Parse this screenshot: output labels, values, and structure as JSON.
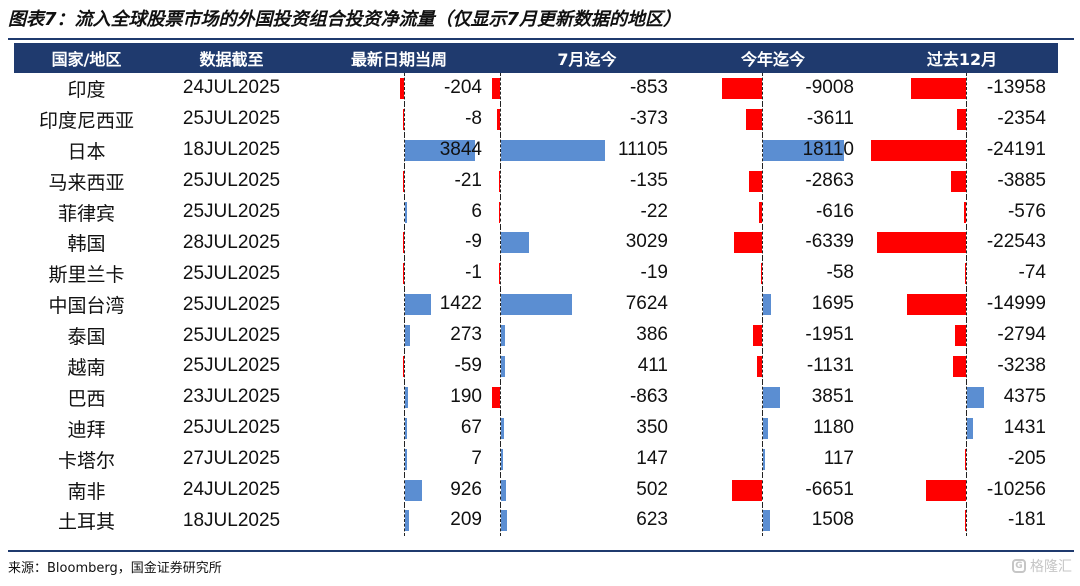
{
  "title": "图表7：流入全球股票市场的外国投资组合投资净流量（仅显示7月更新数据的地区）",
  "headers": [
    "国家/地区",
    "数据截至",
    "最新日期当周",
    "7月迄今",
    "今年迄今",
    "过去12月"
  ],
  "rows": [
    {
      "country": "印度",
      "date": "24JUL2025",
      "week": "-204",
      "mtd": "-853",
      "ytd": "-9008",
      "ltm": "-13958"
    },
    {
      "country": "印度尼西亚",
      "date": "25JUL2025",
      "week": "-8",
      "mtd": "-373",
      "ytd": "-3611",
      "ltm": "-2354"
    },
    {
      "country": "日本",
      "date": "18JUL2025",
      "week": "3844",
      "mtd": "11105",
      "ytd": "18110",
      "ltm": "-24191"
    },
    {
      "country": "马来西亚",
      "date": "25JUL2025",
      "week": "-21",
      "mtd": "-135",
      "ytd": "-2863",
      "ltm": "-3885"
    },
    {
      "country": "菲律宾",
      "date": "25JUL2025",
      "week": "6",
      "mtd": "-22",
      "ytd": "-616",
      "ltm": "-576"
    },
    {
      "country": "韩国",
      "date": "28JUL2025",
      "week": "-9",
      "mtd": "3029",
      "ytd": "-6339",
      "ltm": "-22543"
    },
    {
      "country": "斯里兰卡",
      "date": "25JUL2025",
      "week": "-1",
      "mtd": "-19",
      "ytd": "-58",
      "ltm": "-74"
    },
    {
      "country": "中国台湾",
      "date": "25JUL2025",
      "week": "1422",
      "mtd": "7624",
      "ytd": "1695",
      "ltm": "-14999"
    },
    {
      "country": "泰国",
      "date": "25JUL2025",
      "week": "273",
      "mtd": "386",
      "ytd": "-1951",
      "ltm": "-2794"
    },
    {
      "country": "越南",
      "date": "25JUL2025",
      "week": "-59",
      "mtd": "411",
      "ytd": "-1131",
      "ltm": "-3238"
    },
    {
      "country": "巴西",
      "date": "23JUL2025",
      "week": "190",
      "mtd": "-863",
      "ytd": "3851",
      "ltm": "4375"
    },
    {
      "country": "迪拜",
      "date": "25JUL2025",
      "week": "67",
      "mtd": "350",
      "ytd": "1180",
      "ltm": "1431"
    },
    {
      "country": "卡塔尔",
      "date": "27JUL2025",
      "week": "7",
      "mtd": "147",
      "ytd": "117",
      "ltm": "-205"
    },
    {
      "country": "南非",
      "date": "24JUL2025",
      "week": "926",
      "mtd": "502",
      "ytd": "-6651",
      "ltm": "-10256"
    },
    {
      "country": "土耳其",
      "date": "18JUL2025",
      "week": "209",
      "mtd": "623",
      "ytd": "1508",
      "ltm": "-181"
    }
  ],
  "colors": {
    "header_bg": "#1f3a6e",
    "positive": "#5b8ed2",
    "negative": "#ff0000"
  },
  "source": "来源：Bloomberg，国金证券研究所",
  "watermark": "格隆汇",
  "watermark_icon": "G"
}
